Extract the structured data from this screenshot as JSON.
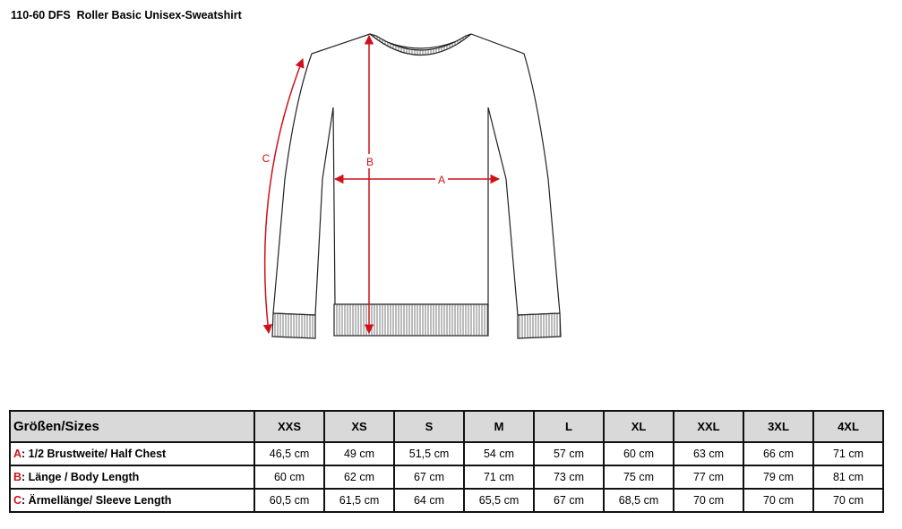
{
  "title": "110-60 DFS  Roller Basic Unisex-Sweatshirt",
  "diagram": {
    "labels": {
      "a": "A",
      "b": "B",
      "c": "C"
    },
    "arrow_color": "#d0101a"
  },
  "table": {
    "header": "Größen/Sizes",
    "sizes": [
      "XXS",
      "XS",
      "S",
      "M",
      "L",
      "XL",
      "XXL",
      "3XL",
      "4XL"
    ],
    "rows": [
      {
        "letter": "A",
        "label": ": 1/2 Brustweite/ Half Chest",
        "values": [
          "46,5 cm",
          "49 cm",
          "51,5 cm",
          "54 cm",
          "57 cm",
          "60 cm",
          "63 cm",
          "66 cm",
          "71 cm"
        ]
      },
      {
        "letter": "B",
        "label": ": Länge / Body Length",
        "values": [
          "60 cm",
          "62 cm",
          "67 cm",
          "71 cm",
          "73 cm",
          "75 cm",
          "77 cm",
          "79 cm",
          "81 cm"
        ]
      },
      {
        "letter": "C",
        "label": ": Ärmellänge/ Sleeve Length",
        "values": [
          "60,5 cm",
          "61,5 cm",
          "64 cm",
          "65,5 cm",
          "67 cm",
          "68,5 cm",
          "70 cm",
          "70 cm",
          "70 cm"
        ]
      }
    ]
  }
}
